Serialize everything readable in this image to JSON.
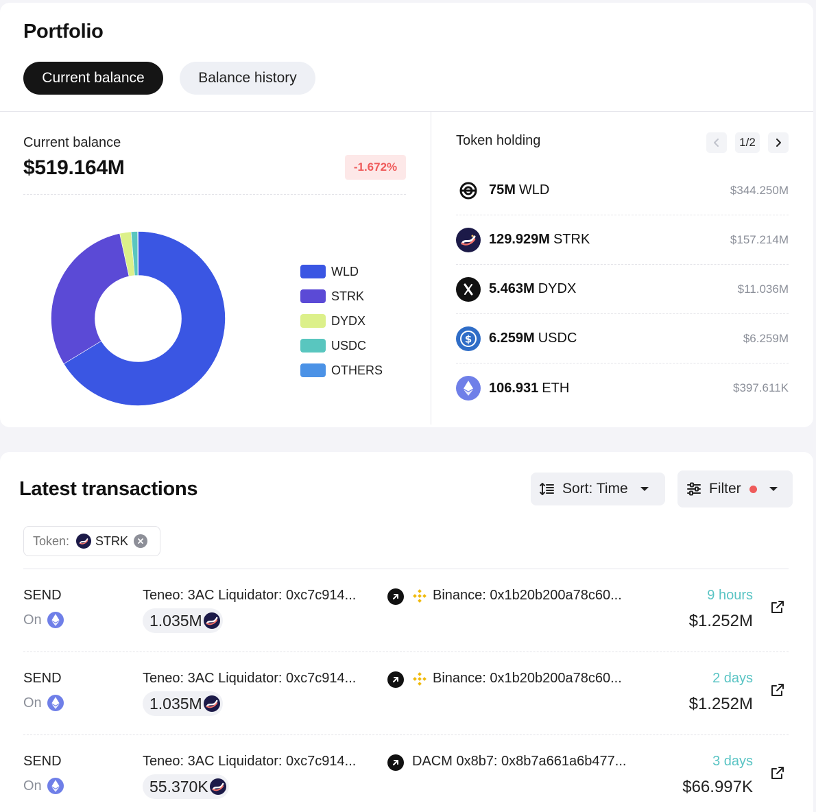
{
  "portfolio": {
    "title": "Portfolio",
    "tabs": {
      "active": "Current balance",
      "inactive": "Balance history"
    }
  },
  "balance": {
    "label": "Current balance",
    "value": "$519.164M",
    "change": "-1.672%"
  },
  "allocation": {
    "segments": [
      {
        "name": "WLD",
        "share": 66.3,
        "color": "#3a56e3"
      },
      {
        "name": "STRK",
        "share": 30.3,
        "color": "#5b4ad6"
      },
      {
        "name": "DYDX",
        "share": 2.1,
        "color": "#dcf08a"
      },
      {
        "name": "USDC",
        "share": 1.2,
        "color": "#59c6bf"
      },
      {
        "name": "OTHERS",
        "share": 0.1,
        "color": "#4b92e6"
      }
    ],
    "legend": [
      "WLD",
      "STRK",
      "DYDX",
      "USDC",
      "OTHERS"
    ]
  },
  "holdings": {
    "label": "Token holding",
    "page": "1/2",
    "items": [
      {
        "amount": "75M",
        "symbol": "WLD",
        "usd": "$344.250M",
        "icon": "worldcoin-icon"
      },
      {
        "amount": "129.929M",
        "symbol": "STRK",
        "usd": "$157.214M",
        "icon": "starknet-icon"
      },
      {
        "amount": "5.463M",
        "symbol": "DYDX",
        "usd": "$11.036M",
        "icon": "dydx-icon"
      },
      {
        "amount": "6.259M",
        "symbol": "USDC",
        "usd": "$6.259M",
        "icon": "usdc-icon"
      },
      {
        "amount": "106.931",
        "symbol": "ETH",
        "usd": "$397.611K",
        "icon": "ethereum-icon"
      }
    ]
  },
  "transactions": {
    "title": "Latest transactions",
    "sort_label": "Sort: Time",
    "filter_label": "Filter",
    "chip": {
      "key": "Token:",
      "value": "STRK"
    },
    "rows": [
      {
        "type": "SEND",
        "chain_label": "On",
        "from": "Teneo: 3AC Liquidator: 0xc7c914...",
        "to": "Binance: 0x1b20b200a78c60...",
        "to_icon": "binance-icon",
        "amount": "1.035M",
        "time": "9 hours",
        "usd": "$1.252M"
      },
      {
        "type": "SEND",
        "chain_label": "On",
        "from": "Teneo: 3AC Liquidator: 0xc7c914...",
        "to": "Binance: 0x1b20b200a78c60...",
        "to_icon": "binance-icon",
        "amount": "1.035M",
        "time": "2 days",
        "usd": "$1.252M"
      },
      {
        "type": "SEND",
        "chain_label": "On",
        "from": "Teneo: 3AC Liquidator: 0xc7c914...",
        "to": "DACM 0x8b7: 0x8b7a661a6b477...",
        "to_icon": "",
        "amount": "55.370K",
        "time": "3 days",
        "usd": "$66.997K"
      }
    ]
  }
}
